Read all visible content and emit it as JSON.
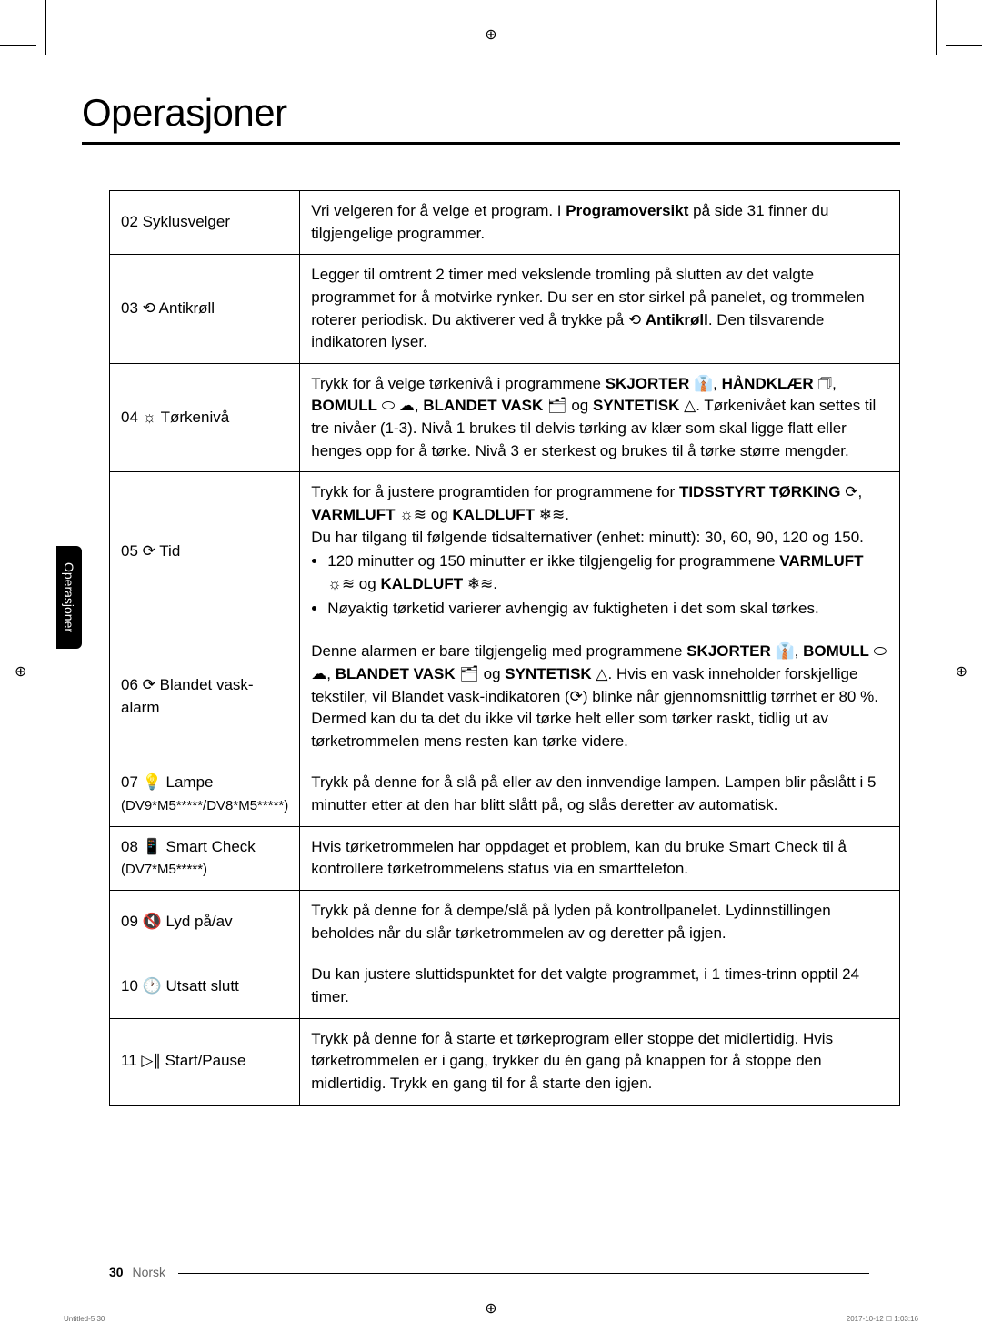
{
  "page": {
    "title": "Operasjoner",
    "side_tab": "Operasjoner",
    "page_number": "30",
    "language": "Norsk",
    "tiny_left": "Untitled-5   30",
    "tiny_right": "2017-10-12   ☐ 1:03:16"
  },
  "rows": [
    {
      "label": "02 Syklusvelger",
      "desc_html": "Vri velgeren for å velge et program. I <b>Programoversikt</b> på side 31 finner du tilgjengelige programmer."
    },
    {
      "label": "03 ⟲ Antikrøll",
      "desc_html": "Legger til omtrent 2 timer med vekslende tromling på slutten av det valgte programmet for å motvirke rynker. Du ser en stor sirkel på panelet, og trommelen roterer periodisk. Du aktiverer ved å trykke på ⟲ <b>Antikrøll</b>. Den tilsvarende indikatoren lyser."
    },
    {
      "label": "04 ☼ Tørkenivå",
      "desc_html": "Trykk for å velge tørkenivå i programmene <b>SKJORTER</b> 👔, <b>HÅNDKLÆR</b> 🗇, <b>BOMULL</b> ⬭ ☁, <b>BLANDET VASK</b> 🗂 og <b>SYNTETISK</b> △. Tørkenivået kan settes til tre nivåer (1-3). Nivå 1 brukes til delvis tørking av klær som skal ligge flatt eller henges opp for å tørke. Nivå 3 er sterkest og brukes til å tørke større mengder."
    },
    {
      "label": "05 ⟳ Tid",
      "desc_html": "Trykk for å justere programtiden for programmene for <b>TIDSSTYRT TØRKING</b> ⟳, <b>VARMLUFT</b> ☼≋ og <b>KALDLUFT</b> ❄≋.<br>Du har tilgang til følgende tidsalternativer (enhet: minutt): 30, 60, 90, 120 og 150.<ul><li>120 minutter og 150 minutter er ikke tilgjengelig for programmene <b>VARMLUFT</b> ☼≋ og <b>KALDLUFT</b> ❄≋.</li><li>Nøyaktig tørketid varierer avhengig av fuktigheten i det som skal tørkes.</li></ul>"
    },
    {
      "label": "06 ⟳ Blandet vask-alarm",
      "desc_html": "Denne alarmen er bare tilgjengelig med programmene <b>SKJORTER</b> 👔, <b>BOMULL</b> ⬭ ☁, <b>BLANDET VASK</b> 🗂 og <b>SYNTETISK</b> △. Hvis en vask inneholder forskjellige tekstiler, vil Blandet vask-indikatoren (⟳) blinke når gjennomsnittlig tørrhet er 80 %. Dermed kan du ta det du ikke vil tørke helt eller som tørker raskt, tidlig ut av tørketrommelen mens resten kan tørke videre."
    },
    {
      "label": "07 💡 Lampe<br><span style=\"font-weight:normal;font-size:15px\">(DV9*M5*****/DV8*M5*****)</span>",
      "desc_html": "Trykk på denne for å slå på eller av den innvendige lampen. Lampen blir påslått i 5 minutter etter at den har blitt slått på, og slås deretter av automatisk."
    },
    {
      "label": "08 📱 Smart Check<br><span style=\"font-weight:normal;font-size:15px\">(DV7*M5*****)</span>",
      "desc_html": "Hvis tørketrommelen har oppdaget et problem, kan du bruke Smart Check til å kontrollere tørketrommelens status via en smarttelefon."
    },
    {
      "label": "09 🔇 Lyd på/av",
      "desc_html": "Trykk på denne for å dempe/slå på lyden på kontrollpanelet. Lydinnstillingen beholdes når du slår tørketrommelen av og deretter på igjen."
    },
    {
      "label": "10 🕐 Utsatt slutt",
      "desc_html": "Du kan justere sluttidspunktet for det valgte programmet, i 1 times-trinn opptil 24 timer."
    },
    {
      "label": "11 ▷∥ Start/Pause",
      "desc_html": "Trykk på denne for å starte et tørkeprogram eller stoppe det midlertidig. Hvis tørketrommelen er i gang, trykker du én gang på knappen for å stoppe den midlertidig. Trykk en gang til for å starte den igjen."
    }
  ]
}
